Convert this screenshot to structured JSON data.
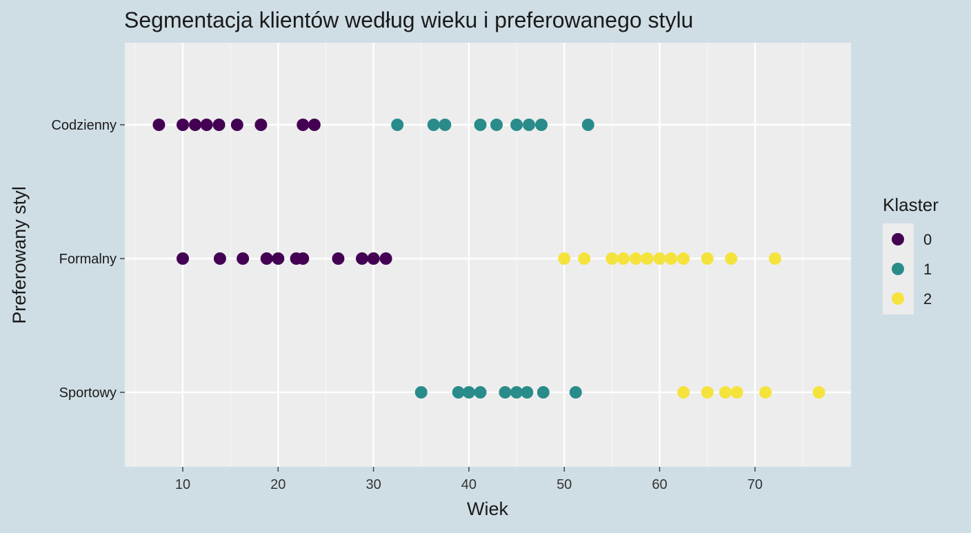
{
  "chart_data": {
    "type": "scatter",
    "title": "Segmentacja klientów według wieku i preferowanego stylu",
    "xlabel": "Wiek",
    "ylabel": "Preferowany styl",
    "xlim": [
      4,
      80
    ],
    "x_ticks": [
      10,
      20,
      30,
      40,
      50,
      60,
      70
    ],
    "categories": [
      "Codzienny",
      "Formalny",
      "Sportowy"
    ],
    "grid": true,
    "legend": {
      "title": "Klaster",
      "position": "right",
      "entries": [
        {
          "label": "0",
          "color": "#440154"
        },
        {
          "label": "1",
          "color": "#2a8c8a"
        },
        {
          "label": "2",
          "color": "#f5e33d"
        }
      ]
    },
    "series": [
      {
        "name": "0",
        "points": [
          {
            "x": 7.5,
            "y": "Codzienny"
          },
          {
            "x": 10,
            "y": "Codzienny"
          },
          {
            "x": 11.3,
            "y": "Codzienny"
          },
          {
            "x": 12.5,
            "y": "Codzienny"
          },
          {
            "x": 13.8,
            "y": "Codzienny"
          },
          {
            "x": 15.7,
            "y": "Codzienny"
          },
          {
            "x": 18.2,
            "y": "Codzienny"
          },
          {
            "x": 22.6,
            "y": "Codzienny"
          },
          {
            "x": 23.8,
            "y": "Codzienny"
          },
          {
            "x": 10,
            "y": "Formalny"
          },
          {
            "x": 13.9,
            "y": "Formalny"
          },
          {
            "x": 16.3,
            "y": "Formalny"
          },
          {
            "x": 18.8,
            "y": "Formalny"
          },
          {
            "x": 20,
            "y": "Formalny"
          },
          {
            "x": 21.9,
            "y": "Formalny"
          },
          {
            "x": 22.6,
            "y": "Formalny"
          },
          {
            "x": 26.3,
            "y": "Formalny"
          },
          {
            "x": 28.8,
            "y": "Formalny"
          },
          {
            "x": 30,
            "y": "Formalny"
          },
          {
            "x": 31.3,
            "y": "Formalny"
          }
        ]
      },
      {
        "name": "1",
        "points": [
          {
            "x": 32.5,
            "y": "Codzienny"
          },
          {
            "x": 36.3,
            "y": "Codzienny"
          },
          {
            "x": 37.5,
            "y": "Codzienny"
          },
          {
            "x": 41.2,
            "y": "Codzienny"
          },
          {
            "x": 42.9,
            "y": "Codzienny"
          },
          {
            "x": 45,
            "y": "Codzienny"
          },
          {
            "x": 46.3,
            "y": "Codzienny"
          },
          {
            "x": 47.6,
            "y": "Codzienny"
          },
          {
            "x": 52.5,
            "y": "Codzienny"
          },
          {
            "x": 35,
            "y": "Sportowy"
          },
          {
            "x": 38.9,
            "y": "Sportowy"
          },
          {
            "x": 40,
            "y": "Sportowy"
          },
          {
            "x": 41.2,
            "y": "Sportowy"
          },
          {
            "x": 43.8,
            "y": "Sportowy"
          },
          {
            "x": 45,
            "y": "Sportowy"
          },
          {
            "x": 46.1,
            "y": "Sportowy"
          },
          {
            "x": 47.8,
            "y": "Sportowy"
          },
          {
            "x": 51.2,
            "y": "Sportowy"
          }
        ]
      },
      {
        "name": "2",
        "points": [
          {
            "x": 50,
            "y": "Formalny"
          },
          {
            "x": 52.1,
            "y": "Formalny"
          },
          {
            "x": 55,
            "y": "Formalny"
          },
          {
            "x": 56.2,
            "y": "Formalny"
          },
          {
            "x": 57.5,
            "y": "Formalny"
          },
          {
            "x": 58.7,
            "y": "Formalny"
          },
          {
            "x": 60,
            "y": "Formalny"
          },
          {
            "x": 61.2,
            "y": "Formalny"
          },
          {
            "x": 62.5,
            "y": "Formalny"
          },
          {
            "x": 65,
            "y": "Formalny"
          },
          {
            "x": 67.5,
            "y": "Formalny"
          },
          {
            "x": 72.1,
            "y": "Formalny"
          },
          {
            "x": 62.5,
            "y": "Sportowy"
          },
          {
            "x": 65,
            "y": "Sportowy"
          },
          {
            "x": 66.9,
            "y": "Sportowy"
          },
          {
            "x": 68.1,
            "y": "Sportowy"
          },
          {
            "x": 71.1,
            "y": "Sportowy"
          },
          {
            "x": 76.7,
            "y": "Sportowy"
          }
        ]
      }
    ]
  }
}
